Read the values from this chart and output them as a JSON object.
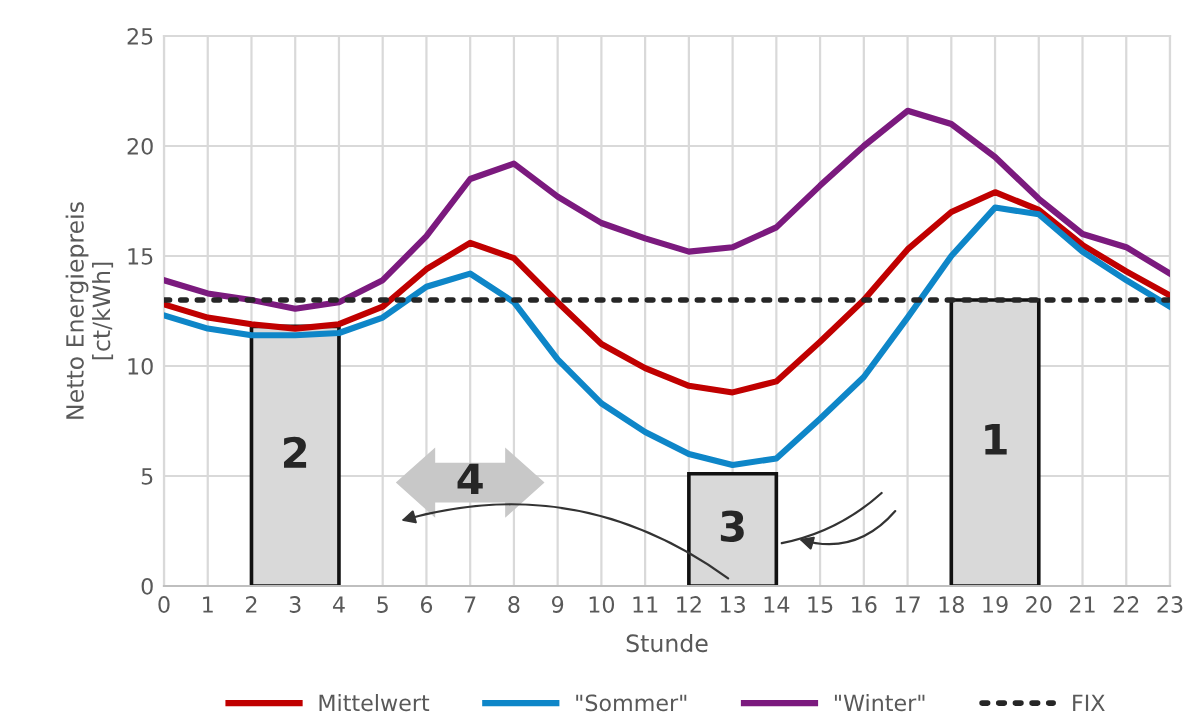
{
  "chart_data": {
    "type": "line",
    "xlabel": "Stunde",
    "ylabel": "Netto Energiepreis\n[ct/kWh]",
    "x": [
      0,
      1,
      2,
      3,
      4,
      5,
      6,
      7,
      8,
      9,
      10,
      11,
      12,
      13,
      14,
      15,
      16,
      17,
      18,
      19,
      20,
      21,
      22,
      23
    ],
    "series": [
      {
        "name": "Mittelwert",
        "color": "#c00000",
        "values": [
          12.8,
          12.2,
          11.9,
          11.7,
          11.9,
          12.7,
          14.4,
          15.6,
          14.9,
          12.9,
          11.0,
          9.9,
          9.1,
          8.8,
          9.3,
          11.1,
          13.0,
          15.3,
          17.0,
          17.9,
          17.1,
          15.5,
          14.3,
          13.2
        ]
      },
      {
        "name": "\"Sommer\"",
        "color": "#0e86c8",
        "values": [
          12.3,
          11.7,
          11.4,
          11.4,
          11.5,
          12.2,
          13.6,
          14.2,
          12.9,
          10.3,
          8.3,
          7.0,
          6.0,
          5.5,
          5.8,
          7.6,
          9.5,
          12.2,
          15.0,
          17.2,
          16.9,
          15.2,
          13.9,
          12.7
        ]
      },
      {
        "name": "\"Winter\"",
        "color": "#7b1a7e",
        "values": [
          13.9,
          13.3,
          13.0,
          12.6,
          12.9,
          13.9,
          15.9,
          18.5,
          19.2,
          17.7,
          16.5,
          15.8,
          15.2,
          15.4,
          16.3,
          18.2,
          20.0,
          21.6,
          21.0,
          19.5,
          17.6,
          16.0,
          15.4,
          14.2
        ]
      },
      {
        "name": "FIX",
        "color": "#262626",
        "line_style": "dotted",
        "values": [
          13,
          13,
          13,
          13,
          13,
          13,
          13,
          13,
          13,
          13,
          13,
          13,
          13,
          13,
          13,
          13,
          13,
          13,
          13,
          13,
          13,
          13,
          13,
          13
        ]
      },
      {
        "type": "bar",
        "color": "#d9d9d9",
        "x": [
          3,
          13,
          19
        ],
        "values": [
          11.8,
          5.1,
          13.0
        ]
      }
    ],
    "annotations": [
      "2",
      "3",
      "1",
      "4"
    ],
    "xlim": [
      0,
      23
    ],
    "xticks": [
      0,
      1,
      2,
      3,
      4,
      5,
      6,
      7,
      8,
      9,
      10,
      11,
      12,
      13,
      14,
      15,
      16,
      17,
      18,
      19,
      20,
      21,
      22,
      23
    ],
    "ylim": [
      0,
      25
    ],
    "yticks": [
      0,
      5,
      10,
      15,
      20,
      25
    ],
    "grid": true,
    "legend": "bottom",
    "line_style": "solid",
    "marker": "none"
  }
}
